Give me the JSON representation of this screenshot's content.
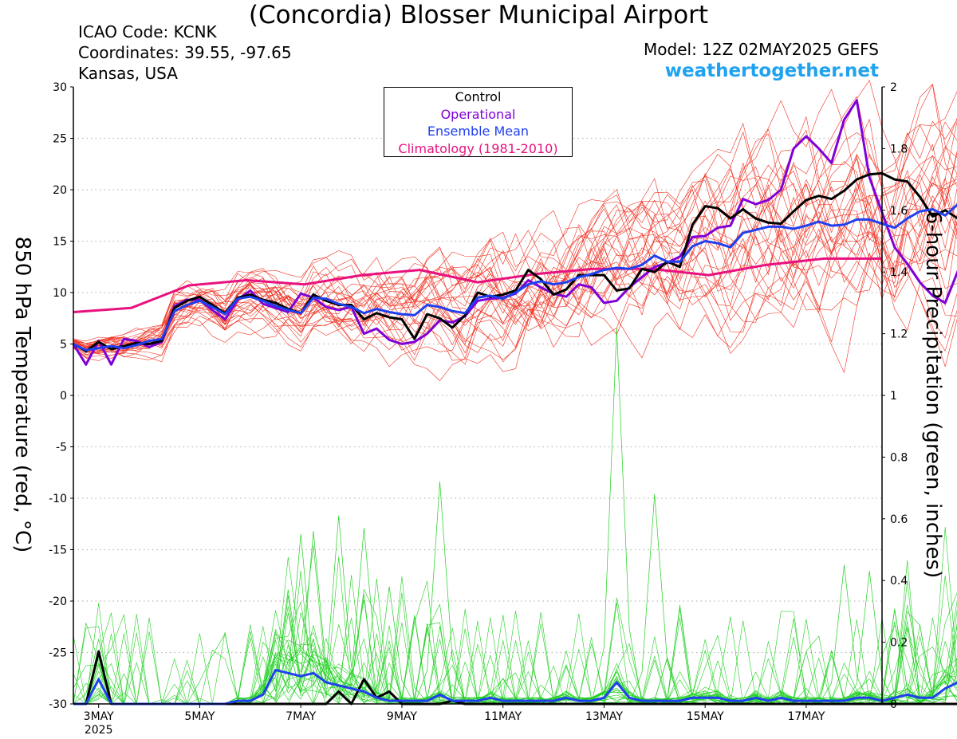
{
  "header": {
    "title": "(Concordia) Blosser Municipal Airport",
    "icao": "ICAO Code: KCNK",
    "coordinates": "Coordinates: 39.55, -97.65",
    "location": "Kansas, USA",
    "model": "Model: 12Z 02MAY2025 GEFS",
    "site": "weathertogether.net"
  },
  "colors": {
    "control": "#000000",
    "operational": "#8000d8",
    "ensemble_mean": "#2040f0",
    "climatology": "#e8117f",
    "members_temp": "#f03020",
    "members_precip": "#20d020",
    "site": "#1fa2f0"
  },
  "chart_data": {
    "type": "line",
    "ylabel": "850 hPa Temperature (red, °C)",
    "y2label": "6-hour Precipitation (green, inches)",
    "ylim": [
      -30,
      30
    ],
    "y2lim": [
      0,
      2
    ],
    "yticks": [
      "30",
      "25",
      "20",
      "15",
      "10",
      "5",
      "0",
      "-5",
      "-10",
      "-15",
      "-20",
      "-25",
      "-30"
    ],
    "y2ticks": [
      "2",
      "1.8",
      "1.6",
      "1.4",
      "1.2",
      "1",
      "0.8",
      "0.6",
      "0.4",
      "0.2",
      "0"
    ],
    "xticks": [
      "3MAY",
      "5MAY",
      "7MAY",
      "9MAY",
      "11MAY",
      "13MAY",
      "15MAY",
      "17MAY"
    ],
    "xtick_year": "2025",
    "x_day_range": [
      2.5,
      18.5
    ],
    "grid": true,
    "legend": {
      "position": "top-center",
      "entries": [
        "Control",
        "Operational",
        "Ensemble Mean",
        "Climatology (1981-2010)"
      ]
    },
    "temperature": {
      "x_start_day": 2.5,
      "step_days": 0.25,
      "control": [
        5,
        4.3,
        5.2,
        4.5,
        4.8,
        5.1,
        5.0,
        5.3,
        8.5,
        9.2,
        9.6,
        8.8,
        8.0,
        9.5,
        9.8,
        9.3,
        9.0,
        8.4,
        8.0,
        9.8,
        9.2,
        8.8,
        8.8,
        7.4,
        8.0,
        7.6,
        7.4,
        5.5,
        7.9,
        7.5,
        6.6,
        7.8,
        10.0,
        9.6,
        9.8,
        10.2,
        12.2,
        11.3,
        9.8,
        10.3,
        11.7,
        11.7,
        11.7,
        10.2,
        10.4,
        12.3,
        12.0,
        13.0,
        12.5,
        16.6,
        18.4,
        18.2,
        17.2,
        18.1,
        17.2,
        16.8,
        16.7,
        17.9,
        19.0,
        19.4,
        19.1,
        19.9,
        21.0,
        21.5,
        21.6,
        21.0,
        20.8,
        19.3,
        17.4,
        18.0,
        17.2,
        18.6
      ],
      "operational": [
        5,
        3.0,
        5.3,
        3.0,
        5.5,
        5.3,
        4.7,
        5.2,
        8.7,
        9.3,
        9.3,
        8.3,
        7.4,
        9.3,
        10.2,
        8.9,
        8.5,
        8.1,
        9.9,
        9.5,
        8.6,
        8.3,
        8.6,
        6.0,
        6.5,
        5.4,
        5.0,
        5.2,
        6.0,
        7.3,
        7.1,
        7.7,
        9.2,
        9.4,
        9.5,
        9.9,
        11.2,
        10.5,
        9.9,
        9.6,
        10.8,
        10.5,
        9.0,
        9.2,
        10.5,
        11.5,
        12.5,
        12.9,
        13.5,
        15.4,
        15.5,
        16.3,
        16.5,
        19.1,
        18.6,
        19.0,
        20.0,
        24.0,
        25.2,
        24.0,
        22.6,
        26.8,
        28.7,
        21.2,
        17.8,
        14.4,
        12.8,
        11.0,
        9.7,
        9.0,
        12.1,
        15.0,
        16.2
      ],
      "ensemble_mean": [
        5,
        4.4,
        4.6,
        4.8,
        4.6,
        4.9,
        5.3,
        5.5,
        8.2,
        8.8,
        9.2,
        8.6,
        7.9,
        9.4,
        9.6,
        9.2,
        8.7,
        8.3,
        8.0,
        9.5,
        9.4,
        8.9,
        8.6,
        8.0,
        8.4,
        8.1,
        7.9,
        7.8,
        8.8,
        8.6,
        8.2,
        8.0,
        9.5,
        9.7,
        9.4,
        10.0,
        10.8,
        11.1,
        10.8,
        11.0,
        11.5,
        11.8,
        12.2,
        12.4,
        12.3,
        12.7,
        13.6,
        13.0,
        13.0,
        14.5,
        15.0,
        14.8,
        14.4,
        15.8,
        16.1,
        16.4,
        16.4,
        16.2,
        16.5,
        16.9,
        16.5,
        16.6,
        17.1,
        17.1,
        16.7,
        16.3,
        17.2,
        17.9,
        18.1,
        17.5,
        18.6,
        17.9,
        16.6
      ],
      "climatology": [
        8.1,
        8.5,
        10.7,
        11.2,
        10.8,
        11.7,
        12.2,
        11.0,
        11.8,
        12.3,
        12.3,
        11.7,
        12.7,
        13.3,
        13.3
      ]
    },
    "precipitation": {
      "x_start_day": 2.5,
      "step_days": 0.25,
      "control": [
        0,
        0,
        0.17,
        0,
        0,
        0,
        0,
        0,
        0,
        0,
        0,
        0,
        0,
        0,
        0,
        0,
        0,
        0,
        0,
        0,
        0,
        0.04,
        0,
        0.08,
        0.02,
        0.04,
        0,
        0,
        0,
        0,
        0.01,
        0,
        0,
        0,
        0,
        0,
        0,
        0,
        0,
        0,
        0,
        0,
        0,
        0,
        0,
        0,
        0,
        0,
        0,
        0,
        0,
        0,
        0,
        0,
        0,
        0,
        0,
        0,
        0,
        0,
        0,
        0,
        0,
        0,
        0,
        0,
        0,
        0,
        0,
        0,
        0,
        0.17
      ],
      "ensemble_mean": [
        0,
        0,
        0.08,
        0,
        0,
        0,
        0,
        0,
        0,
        0,
        0,
        0,
        0,
        0.01,
        0.01,
        0.03,
        0.11,
        0.1,
        0.09,
        0.1,
        0.07,
        0.06,
        0.05,
        0.04,
        0.02,
        0.01,
        0.01,
        0.01,
        0.01,
        0.03,
        0.01,
        0.01,
        0.01,
        0.02,
        0.01,
        0.01,
        0.01,
        0.01,
        0.01,
        0.02,
        0.01,
        0.01,
        0.02,
        0.07,
        0.02,
        0.01,
        0.01,
        0.01,
        0.01,
        0.02,
        0.02,
        0.02,
        0.01,
        0.01,
        0.02,
        0.01,
        0.02,
        0.01,
        0.01,
        0.01,
        0.01,
        0.01,
        0.02,
        0.02,
        0.01,
        0.02,
        0.03,
        0.02,
        0.02,
        0.05,
        0.07,
        0.06
      ],
      "member_peaks_inches": [
        0.21,
        0.55,
        0.56,
        0.61,
        0.57,
        0.38,
        0.37,
        0.72,
        1.22,
        0.68,
        0.45,
        0.43
      ]
    }
  }
}
